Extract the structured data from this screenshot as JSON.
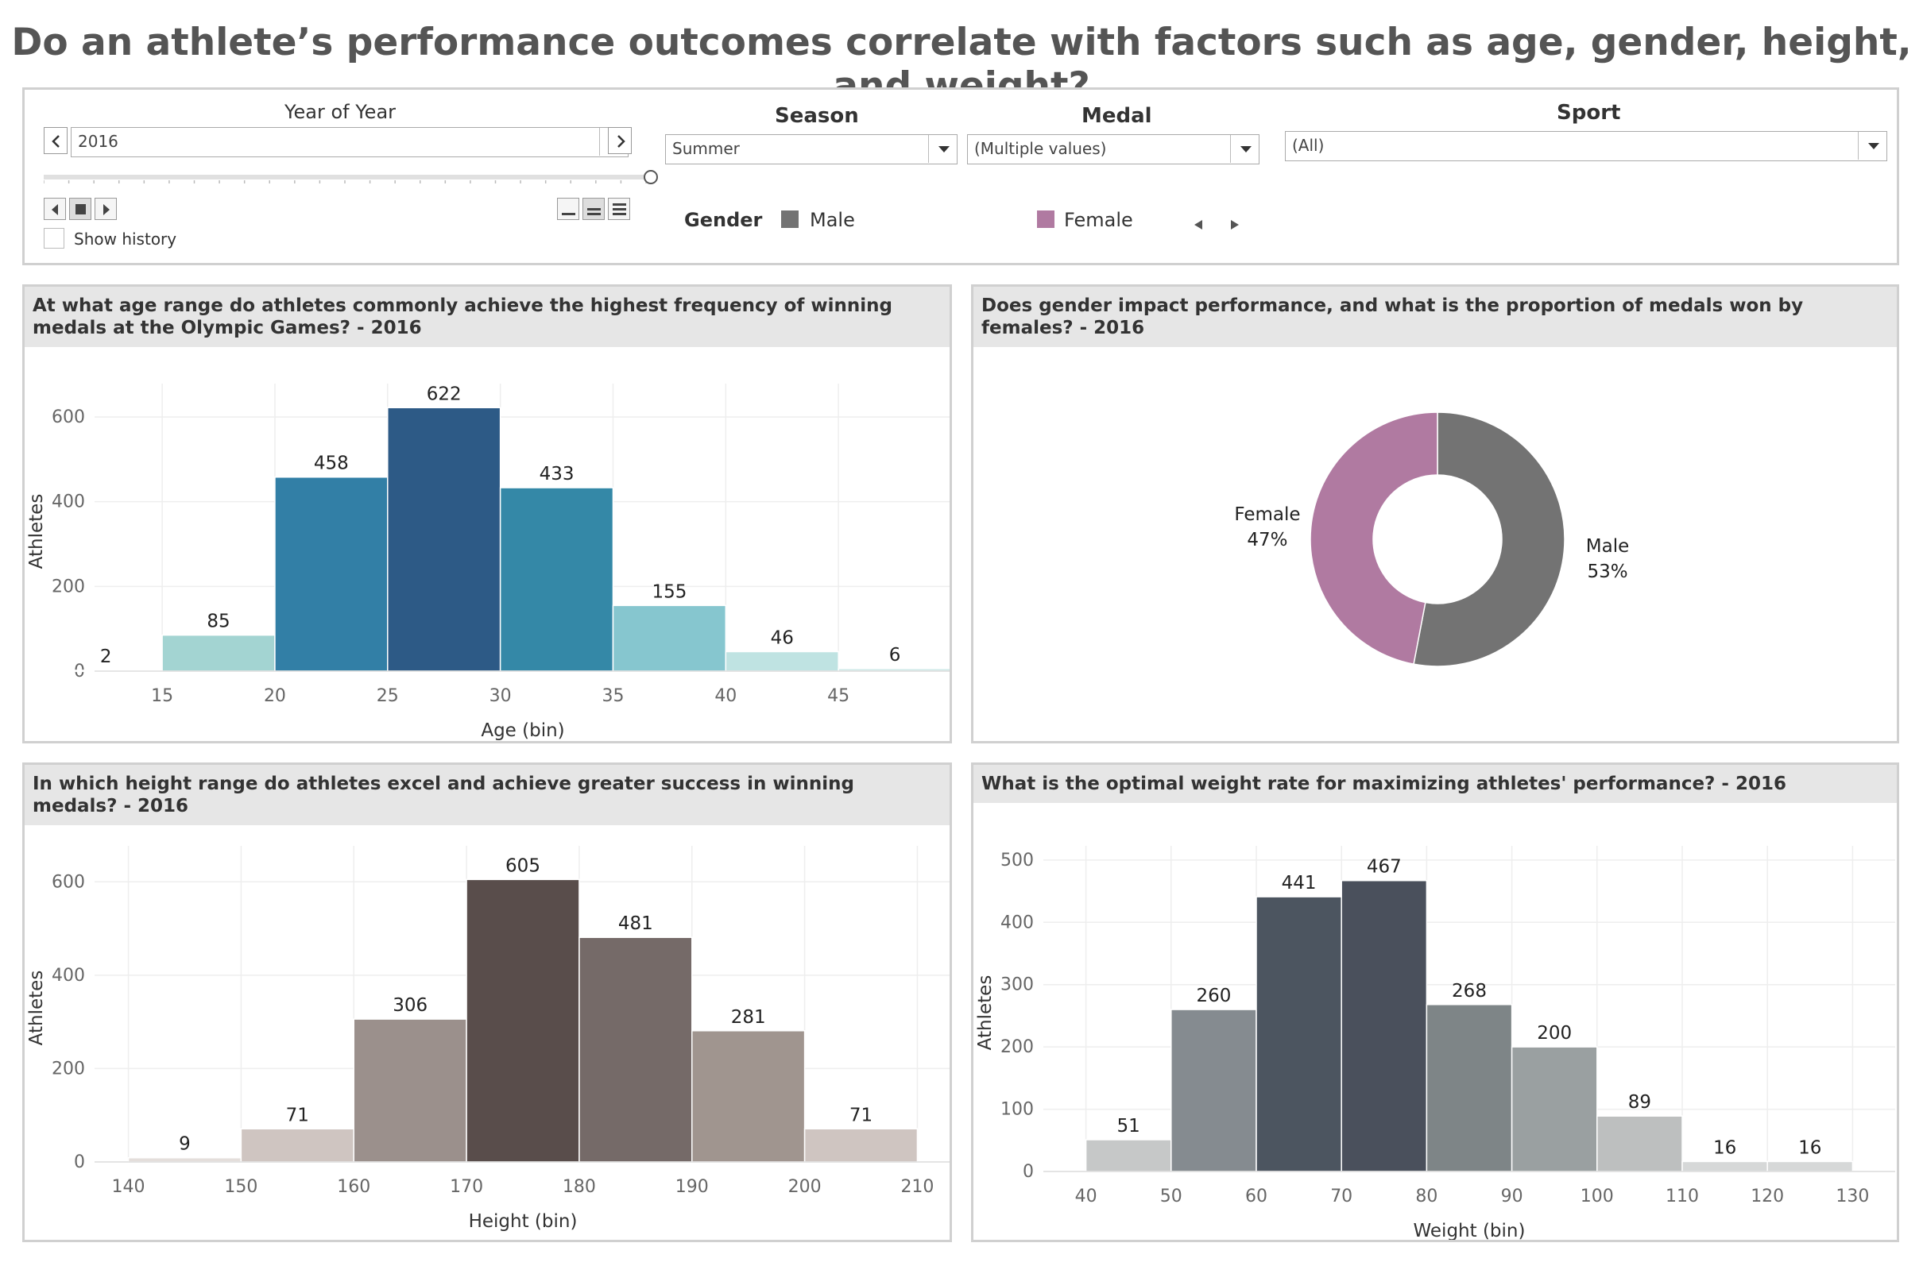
{
  "page_title": "Do an athlete’s performance outcomes correlate with factors such as age, gender, height, and weight?",
  "filters": {
    "year": {
      "label": "Year of Year",
      "value": "2016",
      "show_history": "Show history"
    },
    "season": {
      "label": "Season",
      "value": "Summer"
    },
    "medal": {
      "label": "Medal",
      "value": "(Multiple values)"
    },
    "sport": {
      "label": "Sport",
      "value": "(All)"
    },
    "gender_legend": {
      "label": "Gender",
      "items": [
        {
          "name": "Male",
          "color": "#737373"
        },
        {
          "name": "Female",
          "color": "#b07aa1"
        }
      ]
    }
  },
  "chart_data": [
    {
      "type": "bar",
      "title": "At what age range do athletes commonly achieve the highest frequency of winning medals at the Olympic Games? - 2016",
      "xlabel": "Age (bin)",
      "ylabel": "Athletes",
      "bin_width": 5,
      "bins": [
        10,
        15,
        20,
        25,
        30,
        35,
        40,
        45
      ],
      "values": [
        2,
        85,
        458,
        622,
        433,
        155,
        46,
        6
      ],
      "x_ticks": [
        15,
        20,
        25,
        30,
        35,
        40,
        45
      ],
      "y_ticks": [
        0,
        200,
        400,
        600
      ],
      "xlim": [
        12,
        50
      ],
      "ylim": [
        0,
        660
      ],
      "colors": [
        "#d2e9e8",
        "#a3d4d2",
        "#327fa6",
        "#2d5a86",
        "#3488a7",
        "#86c6cf",
        "#bfe3e2",
        "#cde9e7"
      ]
    },
    {
      "type": "pie",
      "title": "Does gender impact performance, and what is the proportion of medals won by females? - 2016",
      "slices": [
        {
          "label": "Male",
          "percent": 53,
          "display": "53%",
          "color": "#737373"
        },
        {
          "label": "Female",
          "percent": 47,
          "display": "47%",
          "color": "#b07aa1"
        }
      ]
    },
    {
      "type": "bar",
      "title": "In which height range do athletes excel and achieve greater success in winning medals? - 2016",
      "xlabel": "Height (bin)",
      "ylabel": "Athletes",
      "bin_width": 10,
      "bins": [
        140,
        150,
        160,
        170,
        180,
        190,
        200
      ],
      "values": [
        9,
        71,
        306,
        605,
        481,
        281,
        71
      ],
      "x_ticks": [
        140,
        150,
        160,
        170,
        180,
        190,
        200,
        210
      ],
      "y_ticks": [
        0,
        200,
        400,
        600
      ],
      "xlim": [
        137,
        213
      ],
      "ylim": [
        0,
        660
      ],
      "colors": [
        "#e4dedb",
        "#cfc5c1",
        "#9b908c",
        "#594d4b",
        "#756a68",
        "#a0958f",
        "#cfc5c1"
      ]
    },
    {
      "type": "bar",
      "title": "What is the optimal weight rate for maximizing athletes' performance? - 2016",
      "xlabel": "Weight (bin)",
      "ylabel": "Athletes",
      "bin_width": 10,
      "bins": [
        40,
        50,
        60,
        70,
        80,
        90,
        100,
        110,
        120
      ],
      "values": [
        51,
        260,
        441,
        467,
        268,
        200,
        89,
        16,
        16
      ],
      "x_ticks": [
        40,
        50,
        60,
        70,
        80,
        90,
        100,
        110,
        120,
        130
      ],
      "y_ticks": [
        0,
        100,
        200,
        300,
        400,
        500
      ],
      "xlim": [
        35,
        135
      ],
      "ylim": [
        0,
        510
      ],
      "colors": [
        "#c6c8c8",
        "#858b90",
        "#4c5560",
        "#4a505c",
        "#7e8587",
        "#9aa0a1",
        "#bdbfbf",
        "#d6d8d8",
        "#d6d8d8"
      ]
    }
  ]
}
